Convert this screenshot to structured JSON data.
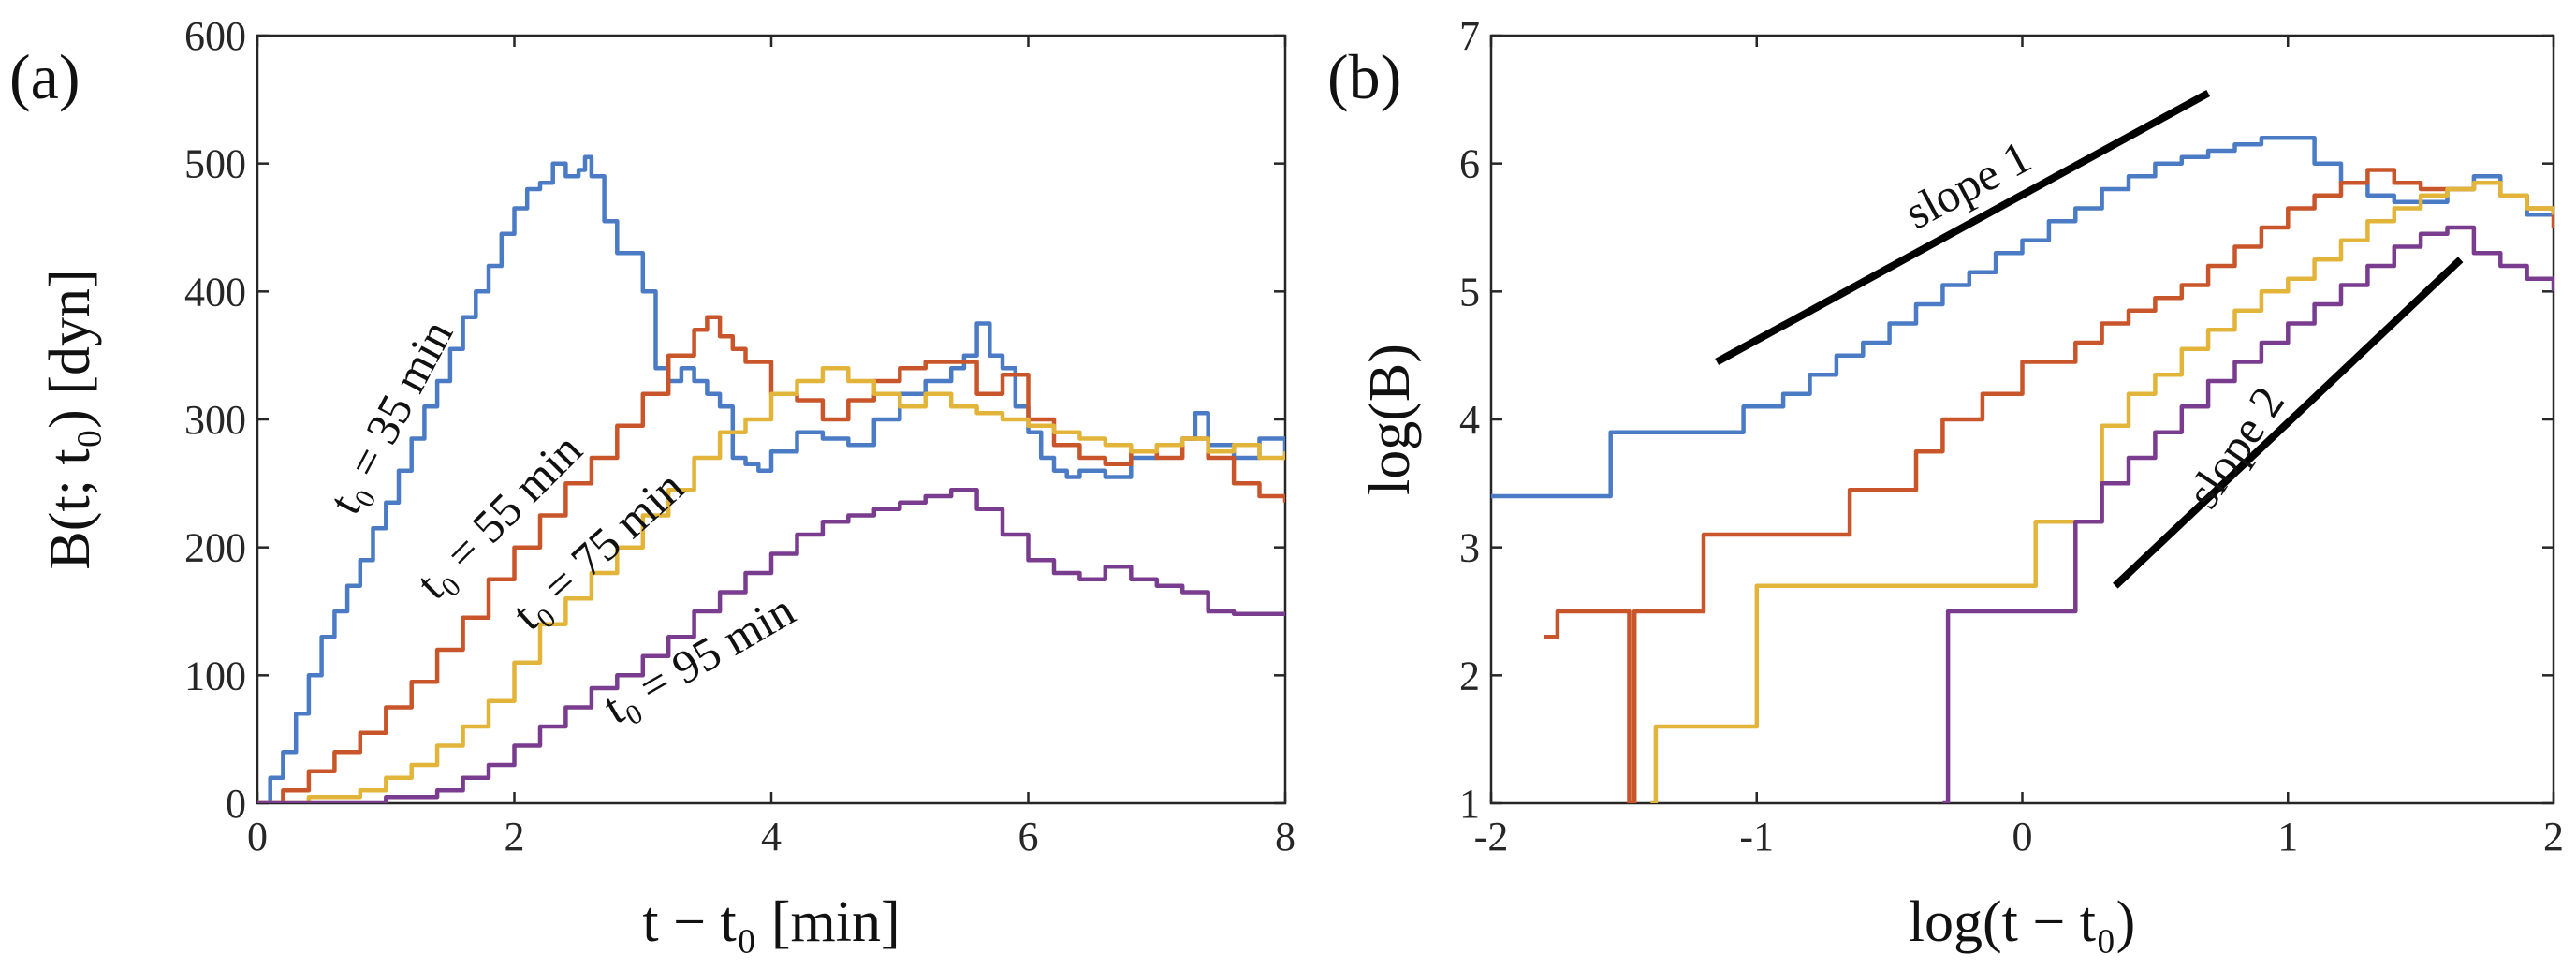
{
  "chart_data": [
    {
      "id": "a",
      "panel_label": "(a)",
      "type": "line",
      "step": true,
      "xlabel": "t − t₀ [min]",
      "ylabel": "B(t; t₀) [dyn]",
      "xlim": [
        0,
        8
      ],
      "ylim": [
        0,
        600
      ],
      "xticks": [
        "0",
        "2",
        "4",
        "6",
        "8"
      ],
      "yticks": [
        "0",
        "100",
        "200",
        "300",
        "400",
        "500",
        "600"
      ],
      "series": [
        {
          "name": "t₀ = 35 min",
          "color": "#4a7bc4",
          "x": [
            0,
            0.1,
            0.2,
            0.3,
            0.4,
            0.5,
            0.6,
            0.7,
            0.8,
            0.9,
            1.0,
            1.1,
            1.2,
            1.3,
            1.4,
            1.5,
            1.6,
            1.7,
            1.8,
            1.9,
            2.0,
            2.1,
            2.2,
            2.3,
            2.4,
            2.5,
            2.55,
            2.6,
            2.7,
            2.8,
            2.9,
            3.0,
            3.1,
            3.2,
            3.3,
            3.4,
            3.5,
            3.6,
            3.7,
            3.8,
            3.9,
            4.0,
            4.2,
            4.4,
            4.6,
            4.8,
            5.0,
            5.2,
            5.4,
            5.5,
            5.6,
            5.7,
            5.8,
            5.9,
            6.0,
            6.1,
            6.2,
            6.3,
            6.4,
            6.6,
            6.8,
            7.0,
            7.2,
            7.3,
            7.4,
            7.6,
            7.8,
            8.0
          ],
          "values": [
            0,
            20,
            40,
            70,
            100,
            130,
            150,
            170,
            190,
            215,
            235,
            260,
            285,
            310,
            330,
            355,
            380,
            400,
            420,
            445,
            465,
            480,
            485,
            500,
            490,
            495,
            505,
            490,
            455,
            430,
            430,
            400,
            340,
            330,
            340,
            330,
            320,
            310,
            270,
            265,
            260,
            275,
            290,
            285,
            280,
            300,
            320,
            330,
            340,
            350,
            375,
            350,
            340,
            310,
            290,
            270,
            260,
            255,
            260,
            255,
            270,
            280,
            285,
            305,
            280,
            270,
            285,
            270
          ]
        },
        {
          "name": "t₀ = 55 min",
          "color": "#c9562a",
          "x": [
            0,
            0.2,
            0.4,
            0.6,
            0.8,
            1.0,
            1.2,
            1.4,
            1.6,
            1.8,
            2.0,
            2.2,
            2.4,
            2.6,
            2.8,
            3.0,
            3.2,
            3.4,
            3.5,
            3.6,
            3.7,
            3.8,
            4.0,
            4.2,
            4.4,
            4.6,
            4.8,
            5.0,
            5.2,
            5.4,
            5.6,
            5.8,
            6.0,
            6.2,
            6.4,
            6.6,
            6.8,
            7.0,
            7.2,
            7.4,
            7.6,
            7.8,
            8.0
          ],
          "values": [
            0,
            10,
            25,
            40,
            55,
            75,
            95,
            120,
            145,
            175,
            200,
            225,
            250,
            270,
            295,
            320,
            350,
            370,
            380,
            365,
            355,
            345,
            320,
            315,
            300,
            315,
            330,
            340,
            345,
            345,
            320,
            335,
            300,
            280,
            270,
            265,
            275,
            270,
            285,
            270,
            250,
            240,
            235
          ]
        },
        {
          "name": "t₀ = 75 min",
          "color": "#e2b53a",
          "x": [
            0,
            0.4,
            0.8,
            1.0,
            1.2,
            1.4,
            1.6,
            1.8,
            2.0,
            2.2,
            2.4,
            2.6,
            2.8,
            3.0,
            3.2,
            3.4,
            3.6,
            3.8,
            4.0,
            4.2,
            4.4,
            4.6,
            4.8,
            5.0,
            5.2,
            5.4,
            5.6,
            5.8,
            6.0,
            6.2,
            6.4,
            6.6,
            6.8,
            7.0,
            7.2,
            7.4,
            7.6,
            7.8,
            8.0
          ],
          "values": [
            0,
            5,
            10,
            20,
            30,
            45,
            60,
            80,
            110,
            140,
            160,
            180,
            200,
            225,
            245,
            270,
            290,
            300,
            320,
            330,
            340,
            330,
            320,
            310,
            320,
            310,
            305,
            300,
            295,
            290,
            285,
            280,
            275,
            280,
            285,
            275,
            280,
            270,
            275
          ]
        },
        {
          "name": "t₀ = 95 min",
          "color": "#7a3c8e",
          "x": [
            0,
            0.6,
            1.0,
            1.4,
            1.6,
            1.8,
            2.0,
            2.2,
            2.4,
            2.6,
            2.8,
            3.0,
            3.2,
            3.4,
            3.6,
            3.8,
            4.0,
            4.2,
            4.4,
            4.6,
            4.8,
            5.0,
            5.2,
            5.4,
            5.6,
            5.8,
            6.0,
            6.2,
            6.4,
            6.6,
            6.8,
            7.0,
            7.2,
            7.4,
            7.6,
            7.8,
            8.0
          ],
          "values": [
            0,
            0,
            5,
            10,
            20,
            30,
            45,
            60,
            75,
            90,
            100,
            115,
            130,
            150,
            165,
            180,
            195,
            210,
            220,
            225,
            230,
            235,
            240,
            245,
            230,
            210,
            190,
            180,
            175,
            185,
            175,
            170,
            165,
            150,
            148,
            148,
            148
          ]
        }
      ],
      "annotations": [
        {
          "text": "t₀ = 35 min"
        },
        {
          "text": "t₀ = 55 min"
        },
        {
          "text": "t₀ = 75 min"
        },
        {
          "text": "t₀ = 95 min"
        }
      ]
    },
    {
      "id": "b",
      "panel_label": "(b)",
      "type": "line",
      "step": true,
      "xlabel": "log(t − t₀)",
      "ylabel": "log(B)",
      "xlim": [
        -2,
        2
      ],
      "ylim": [
        1,
        7
      ],
      "xticks": [
        "-2",
        "-1",
        "0",
        "1",
        "2"
      ],
      "yticks": [
        "1",
        "2",
        "3",
        "4",
        "5",
        "6",
        "7"
      ],
      "series": [
        {
          "name": "t₀ = 35 min",
          "color": "#4a7bc4",
          "x": [
            -2,
            -1.6,
            -1.55,
            -1.2,
            -1.05,
            -0.9,
            -0.8,
            -0.7,
            -0.6,
            -0.5,
            -0.4,
            -0.3,
            -0.2,
            -0.1,
            0.0,
            0.1,
            0.2,
            0.3,
            0.4,
            0.5,
            0.6,
            0.7,
            0.8,
            0.9,
            1.0,
            1.1,
            1.2,
            1.3,
            1.4,
            1.5,
            1.6,
            1.7,
            1.8,
            1.9,
            2.0
          ],
          "values": [
            3.4,
            3.4,
            3.9,
            3.9,
            4.1,
            4.2,
            4.35,
            4.5,
            4.6,
            4.75,
            4.9,
            5.05,
            5.15,
            5.3,
            5.4,
            5.55,
            5.65,
            5.8,
            5.9,
            6.0,
            6.05,
            6.1,
            6.15,
            6.2,
            6.2,
            6.0,
            5.85,
            5.75,
            5.7,
            5.7,
            5.8,
            5.9,
            5.75,
            5.6,
            5.65
          ]
        },
        {
          "name": "t₀ = 55 min",
          "color": "#c9562a",
          "x": [
            -1.8,
            -1.75,
            -1.5,
            -1.48,
            -1.46,
            -1.44,
            -1.2,
            -0.9,
            -0.7,
            -0.65,
            -0.4,
            -0.3,
            -0.15,
            0.0,
            0.2,
            0.3,
            0.4,
            0.5,
            0.6,
            0.7,
            0.8,
            0.9,
            1.0,
            1.1,
            1.2,
            1.3,
            1.4,
            1.5,
            1.6,
            1.7,
            1.8,
            1.9,
            2.0
          ],
          "values": [
            2.3,
            2.5,
            2.5,
            1.0,
            2.5,
            2.5,
            3.1,
            3.1,
            3.1,
            3.45,
            3.75,
            4.0,
            4.2,
            4.45,
            4.6,
            4.75,
            4.85,
            4.95,
            5.05,
            5.2,
            5.35,
            5.5,
            5.65,
            5.75,
            5.85,
            5.95,
            5.85,
            5.8,
            5.8,
            5.85,
            5.75,
            5.65,
            5.5
          ]
        },
        {
          "name": "t₀ = 75 min",
          "color": "#e2b53a",
          "x": [
            -1.4,
            -1.38,
            -1.05,
            -1.0,
            -0.5,
            -0.05,
            0.05,
            0.3,
            0.4,
            0.5,
            0.6,
            0.7,
            0.8,
            0.9,
            1.0,
            1.1,
            1.2,
            1.3,
            1.4,
            1.5,
            1.6,
            1.7,
            1.8,
            1.9,
            2.0
          ],
          "values": [
            1.0,
            1.6,
            1.6,
            2.7,
            2.7,
            2.7,
            3.2,
            3.95,
            4.2,
            4.35,
            4.55,
            4.7,
            4.85,
            5.0,
            5.1,
            5.25,
            5.4,
            5.55,
            5.65,
            5.75,
            5.8,
            5.85,
            5.75,
            5.65,
            5.6
          ]
        },
        {
          "name": "t₀ = 95 min",
          "color": "#7a3c8e",
          "x": [
            -0.3,
            -0.28,
            0.15,
            0.2,
            0.3,
            0.4,
            0.5,
            0.6,
            0.7,
            0.8,
            0.9,
            1.0,
            1.1,
            1.2,
            1.3,
            1.4,
            1.5,
            1.6,
            1.7,
            1.8,
            1.9,
            2.0
          ],
          "values": [
            1.0,
            2.5,
            2.5,
            3.2,
            3.5,
            3.7,
            3.9,
            4.1,
            4.3,
            4.45,
            4.6,
            4.75,
            4.9,
            5.05,
            5.2,
            5.35,
            5.45,
            5.5,
            5.3,
            5.2,
            5.1,
            5.0
          ]
        }
      ],
      "guide_lines": [
        {
          "label": "slope 1",
          "x": [
            -1.15,
            0.7
          ],
          "y": [
            4.45,
            6.55
          ]
        },
        {
          "label": "slope 2",
          "x": [
            0.35,
            1.65
          ],
          "y": [
            2.7,
            5.25
          ]
        }
      ]
    }
  ]
}
